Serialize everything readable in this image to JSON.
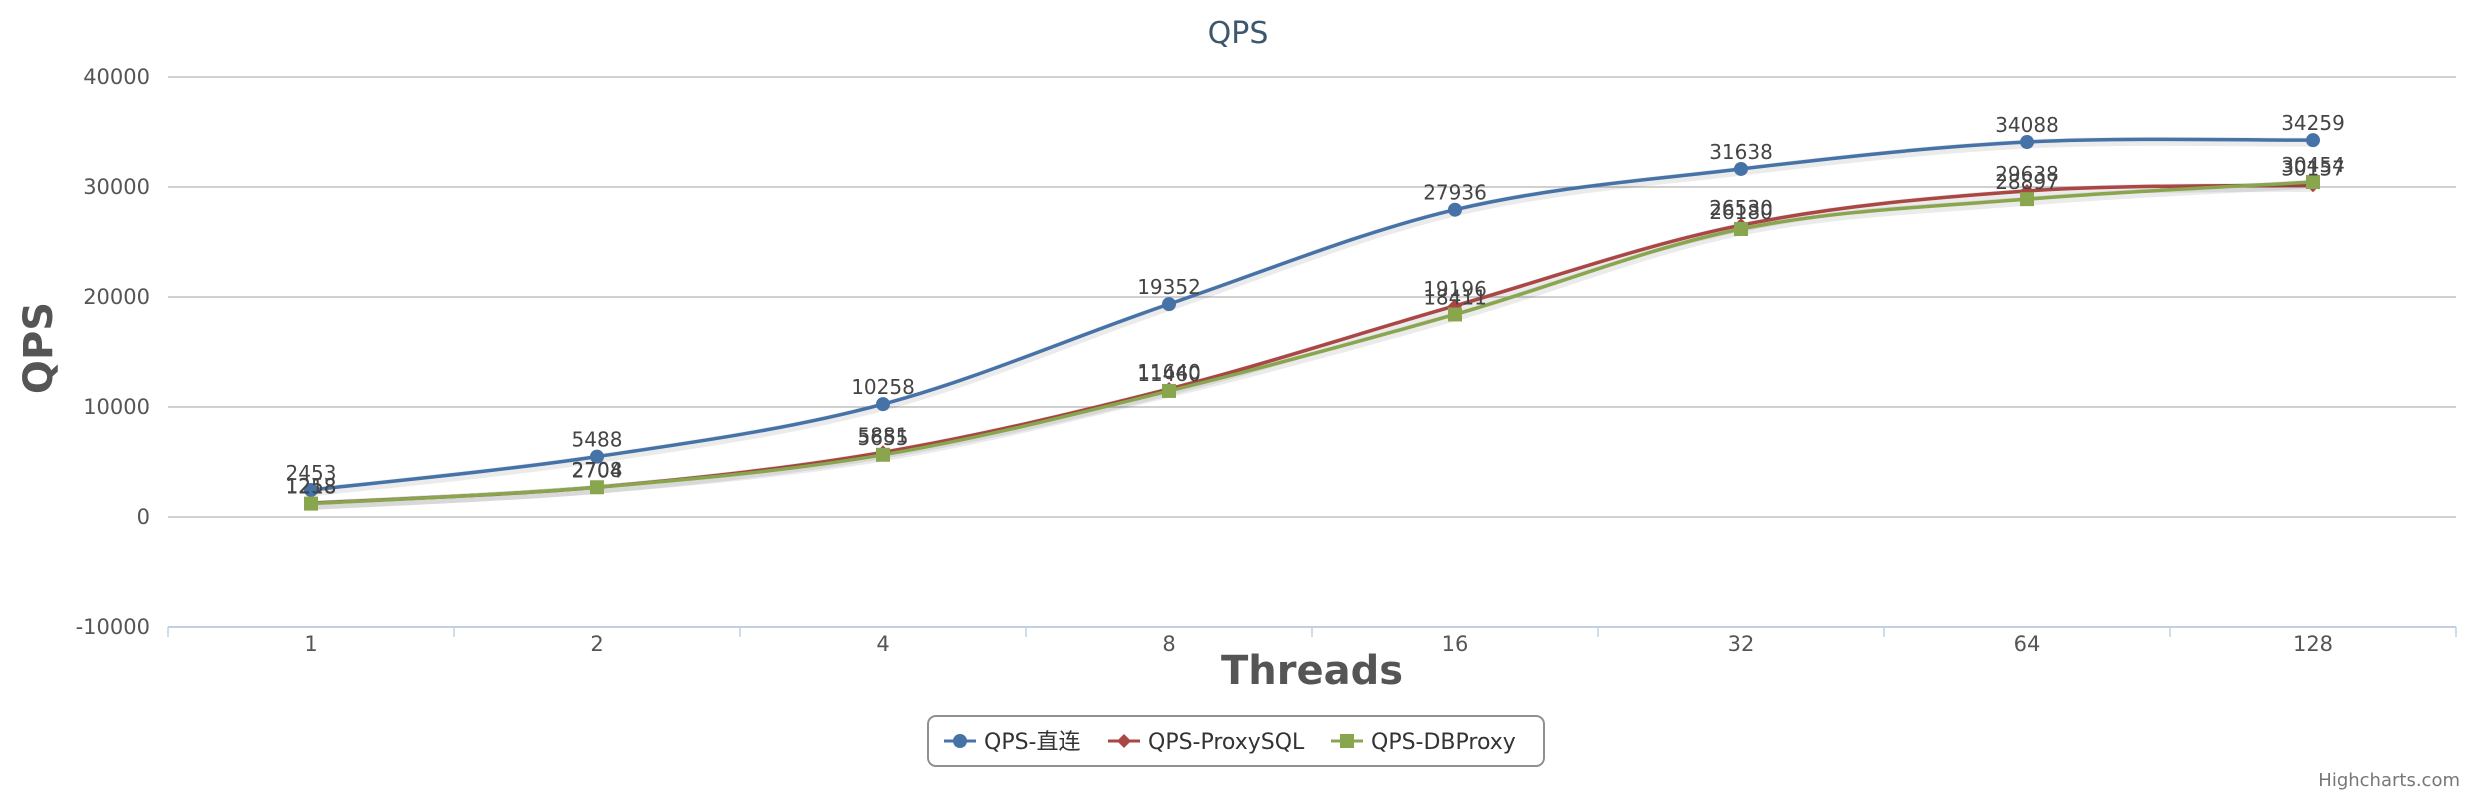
{
  "chart_data": {
    "type": "line",
    "title": "QPS",
    "xlabel": "Threads",
    "ylabel": "QPS",
    "categories": [
      "1",
      "2",
      "4",
      "8",
      "16",
      "32",
      "64",
      "128"
    ],
    "ylim": [
      -10000,
      40000
    ],
    "yticks": [
      40000,
      30000,
      20000,
      10000,
      0,
      -10000
    ],
    "grid": true,
    "legend_position": "bottom-center",
    "series": [
      {
        "name": "QPS-直连",
        "color": "#4572a7",
        "marker": "circle",
        "values": [
          2453,
          5488,
          10258,
          19352,
          27936,
          31638,
          34088,
          34259
        ]
      },
      {
        "name": "QPS-ProxySQL",
        "color": "#aa4643",
        "marker": "diamond",
        "values": [
          1258,
          2708,
          5881,
          11640,
          19196,
          26530,
          29638,
          30157
        ]
      },
      {
        "name": "QPS-DBProxy",
        "color": "#89a54e",
        "marker": "square",
        "values": [
          1218,
          2704,
          5655,
          11460,
          18411,
          26180,
          28897,
          30454
        ]
      }
    ],
    "credits": "Highcharts.com"
  }
}
